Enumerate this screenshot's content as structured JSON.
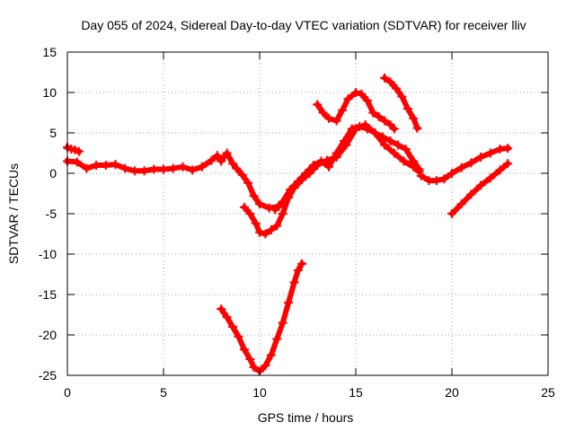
{
  "chart_data": {
    "type": "scatter",
    "title": "Day 055 of 2024, Sidereal Day-to-day VTEC variation (SDTVAR) for receiver lliv",
    "xlabel": "GPS time / hours",
    "ylabel": "SDTVAR / TECUs",
    "xlim": [
      0,
      25
    ],
    "ylim": [
      -25,
      15
    ],
    "xticks": [
      "0",
      "5",
      "10",
      "15",
      "20",
      "25"
    ],
    "yticks": [
      "15",
      "10",
      "5",
      "0",
      "-5",
      "-10",
      "-15",
      "-20",
      "-25"
    ],
    "grid": true,
    "marker_color": "#ff0000",
    "series": [
      {
        "x": [
          0.0,
          0.2,
          0.4,
          0.6
        ],
        "y": [
          3.2,
          3.0,
          2.9,
          2.7
        ]
      },
      {
        "x": [
          0.0,
          0.5,
          1.0,
          1.5,
          2.0,
          2.5,
          3.0,
          3.5,
          4.0,
          4.5,
          5.0,
          5.5,
          6.0,
          6.5,
          7.0,
          7.5,
          7.8,
          8.0,
          8.3,
          8.6,
          8.8,
          9.1,
          9.4,
          9.7,
          10.0,
          10.5,
          11.0,
          11.3
        ],
        "y": [
          1.5,
          1.4,
          0.6,
          1.0,
          1.0,
          1.1,
          0.6,
          0.3,
          0.3,
          0.5,
          0.5,
          0.6,
          0.8,
          0.4,
          0.8,
          1.6,
          2.2,
          1.5,
          2.5,
          1.2,
          0.6,
          -0.2,
          -1.2,
          -2.8,
          -3.8,
          -4.3,
          -4.1,
          -3.5
        ]
      },
      {
        "x": [
          9.2,
          9.5,
          9.8,
          10.0,
          10.3,
          10.6,
          10.9,
          11.2,
          11.5,
          11.8,
          12.2,
          12.6,
          13.0,
          13.5,
          14.0,
          14.5,
          15.0,
          15.5,
          16.0,
          16.5,
          17.0,
          17.5,
          18.0,
          18.3
        ],
        "y": [
          -4.2,
          -5.0,
          -6.2,
          -7.3,
          -7.5,
          -7.0,
          -6.5,
          -5.0,
          -3.0,
          -1.8,
          -0.8,
          0.0,
          1.0,
          1.6,
          2.0,
          3.5,
          5.5,
          6.0,
          5.0,
          3.5,
          2.5,
          1.5,
          0.8,
          0.2
        ]
      },
      {
        "x": [
          10.8,
          11.2,
          11.6,
          12.0,
          12.4,
          12.8,
          13.2,
          13.6,
          14.0,
          14.4,
          14.8,
          15.2,
          15.6,
          16.0,
          16.4,
          16.8,
          17.2,
          17.6,
          18.0,
          18.3
        ],
        "y": [
          -4.5,
          -3.5,
          -2.0,
          -1.0,
          0.0,
          1.0,
          1.5,
          0.8,
          2.5,
          4.0,
          5.5,
          5.8,
          5.5,
          5.0,
          4.5,
          4.0,
          3.5,
          3.0,
          1.5,
          0.5
        ]
      },
      {
        "x": [
          13.0,
          13.3,
          13.6,
          14.0,
          14.3,
          14.6,
          15.0,
          15.3,
          15.6,
          15.9,
          16.2,
          16.5,
          16.8,
          17.0
        ],
        "y": [
          8.5,
          7.5,
          6.8,
          6.5,
          7.8,
          9.2,
          10.0,
          9.8,
          9.0,
          7.5,
          7.0,
          6.5,
          6.0,
          5.5
        ]
      },
      {
        "x": [
          16.5,
          16.8,
          17.1,
          17.4,
          17.7,
          18.0,
          18.2
        ],
        "y": [
          11.8,
          11.3,
          10.5,
          9.5,
          8.0,
          6.8,
          5.6
        ]
      },
      {
        "x": [
          18.4,
          18.8,
          19.2,
          19.6,
          20.0,
          20.5,
          21.0,
          21.5,
          22.0,
          22.5,
          22.9
        ],
        "y": [
          -0.3,
          -0.9,
          -0.9,
          -0.7,
          0.0,
          0.7,
          1.3,
          2.0,
          2.5,
          3.0,
          3.1
        ]
      },
      {
        "x": [
          20.0,
          20.5,
          21.0,
          21.5,
          22.0,
          22.5,
          22.9
        ],
        "y": [
          -5.0,
          -3.8,
          -2.6,
          -1.5,
          -0.6,
          0.4,
          1.2
        ]
      },
      {
        "x": [
          8.0,
          8.3,
          8.6,
          8.9,
          9.2,
          9.5,
          9.7,
          10.0,
          10.3,
          10.6,
          10.9,
          11.2,
          11.5,
          11.8,
          12.0,
          12.2
        ],
        "y": [
          -16.8,
          -17.8,
          -19.0,
          -20.2,
          -21.8,
          -23.0,
          -24.0,
          -24.5,
          -23.8,
          -22.5,
          -20.5,
          -18.5,
          -16.0,
          -13.5,
          -12.0,
          -11.2
        ]
      }
    ]
  }
}
